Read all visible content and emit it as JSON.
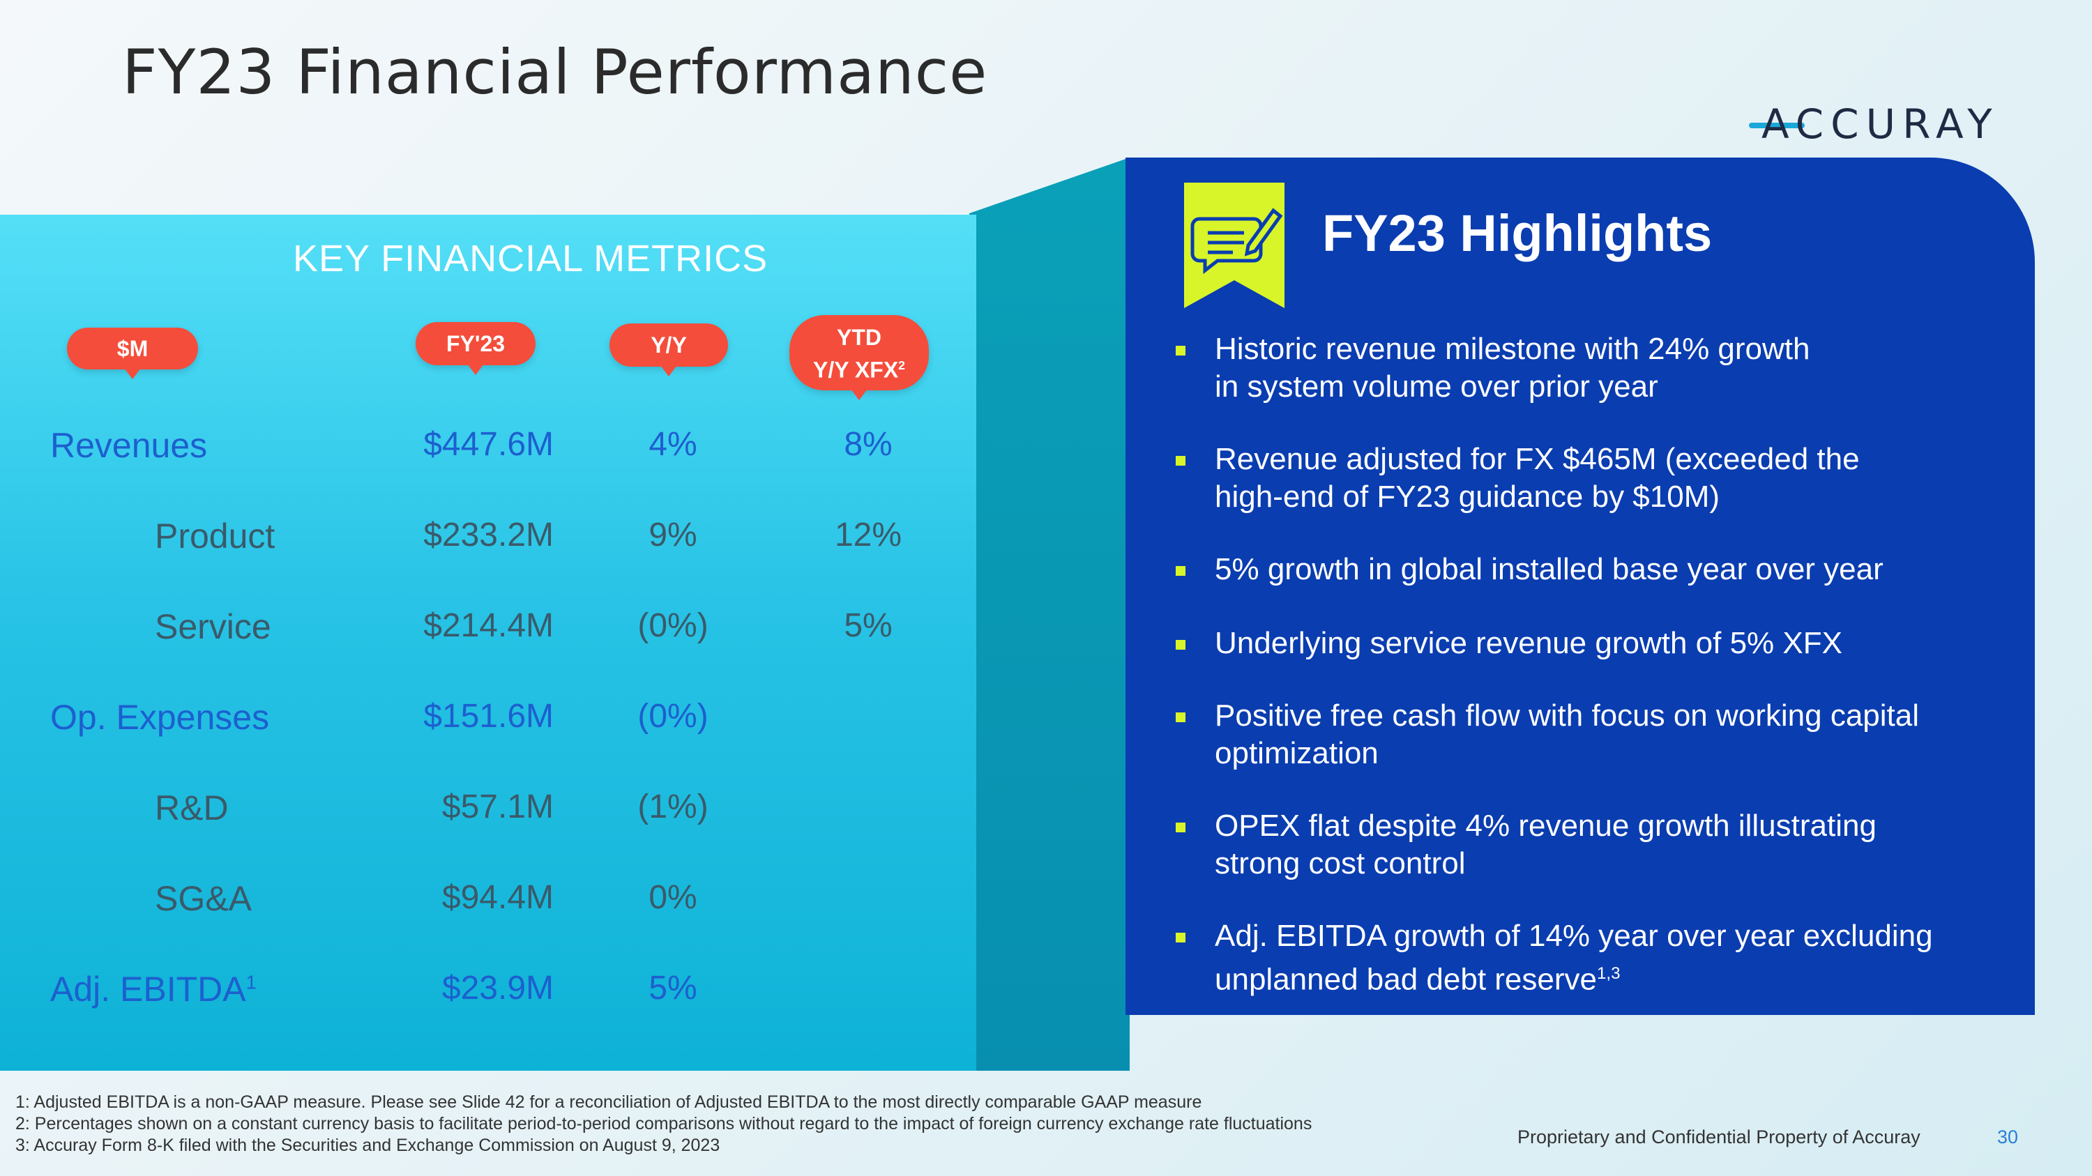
{
  "header": {
    "title": "FY23 Financial Performance",
    "logo_text": "ACCURAY"
  },
  "metrics": {
    "panel_title": "KEY FINANCIAL METRICS",
    "columns": {
      "label": "$M",
      "fy": "FY'23",
      "yy": "Y/Y",
      "ytd_line1": "YTD",
      "ytd_line2": "Y/Y XFX",
      "ytd_sup": "2"
    },
    "rows": [
      {
        "label": "Revenues",
        "fy": "$447.6M",
        "yy": "4%",
        "ytd": "8%"
      },
      {
        "label": "Product",
        "fy": "$233.2M",
        "yy": "9%",
        "ytd": "12%"
      },
      {
        "label": "Service",
        "fy": "$214.4M",
        "yy": "(0%)",
        "ytd": "5%"
      },
      {
        "label": "Op. Expenses",
        "fy": "$151.6M",
        "yy": "(0%)",
        "ytd": ""
      },
      {
        "label": "R&D",
        "fy": "$57.1M",
        "yy": "(1%)",
        "ytd": ""
      },
      {
        "label": "SG&A",
        "fy": "$94.4M",
        "yy": "0%",
        "ytd": ""
      },
      {
        "label": "Adj. EBITDA",
        "label_sup": "1",
        "fy": "$23.9M",
        "yy": "5%",
        "ytd": ""
      }
    ]
  },
  "highlights": {
    "title": "FY23 Highlights",
    "bullets": [
      {
        "line1": "Historic revenue milestone with 24% growth",
        "line2": "in system volume over prior year"
      },
      {
        "line1": "Revenue adjusted for FX $465M (exceeded the",
        "line2": "high-end of FY23 guidance by $10M)"
      },
      {
        "line1": "5% growth in global installed base year over year",
        "line2": ""
      },
      {
        "line1": "Underlying service revenue growth of 5% XFX",
        "line2": ""
      },
      {
        "line1": "Positive free cash flow with focus on working capital",
        "line2": "optimization"
      },
      {
        "line1": "OPEX flat despite 4% revenue growth illustrating",
        "line2": "strong cost control"
      },
      {
        "line1": "Adj. EBITDA growth of 14% year over year excluding",
        "line2": "unplanned bad debt reserve",
        "line2_sup": "1,3"
      }
    ]
  },
  "footnotes": [
    "1: Adjusted EBITDA is a non-GAAP measure. Please see Slide 42 for a reconciliation of Adjusted EBITDA to the most directly comparable GAAP measure",
    "2: Percentages shown on a constant currency basis to facilitate period-to-period comparisons without regard to the impact of foreign currency exchange rate fluctuations",
    "3: Accuray Form 8-K filed with the Securities and Exchange Commission on August 9, 2023"
  ],
  "footer": {
    "confidential": "Proprietary and Confidential Property of Accuray",
    "page_number": "30"
  },
  "colors": {
    "accent_red": "#f44d3b",
    "panel_blue": "#0a3db0",
    "bullet_lime": "#d8f52a"
  }
}
